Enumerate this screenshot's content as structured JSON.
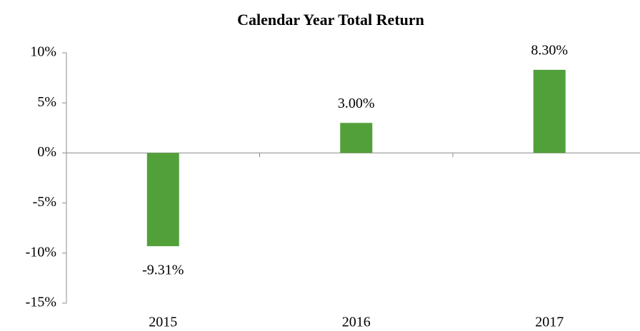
{
  "chart_data": {
    "type": "bar",
    "title": "Calendar Year Total Return",
    "categories": [
      "2015",
      "2016",
      "2017"
    ],
    "values": [
      -9.31,
      3.0,
      8.3
    ],
    "value_labels": [
      "-9.31%",
      "3.00%",
      "8.30%"
    ],
    "color": "#52a03a",
    "ylim": [
      -15,
      10
    ],
    "yticks": [
      {
        "value": -15,
        "label": "-15%"
      },
      {
        "value": -10,
        "label": "-10%"
      },
      {
        "value": -5,
        "label": "-5%"
      },
      {
        "value": 0,
        "label": "0%"
      },
      {
        "value": 5,
        "label": "5%"
      },
      {
        "value": 10,
        "label": "10%"
      }
    ],
    "grid": false
  }
}
